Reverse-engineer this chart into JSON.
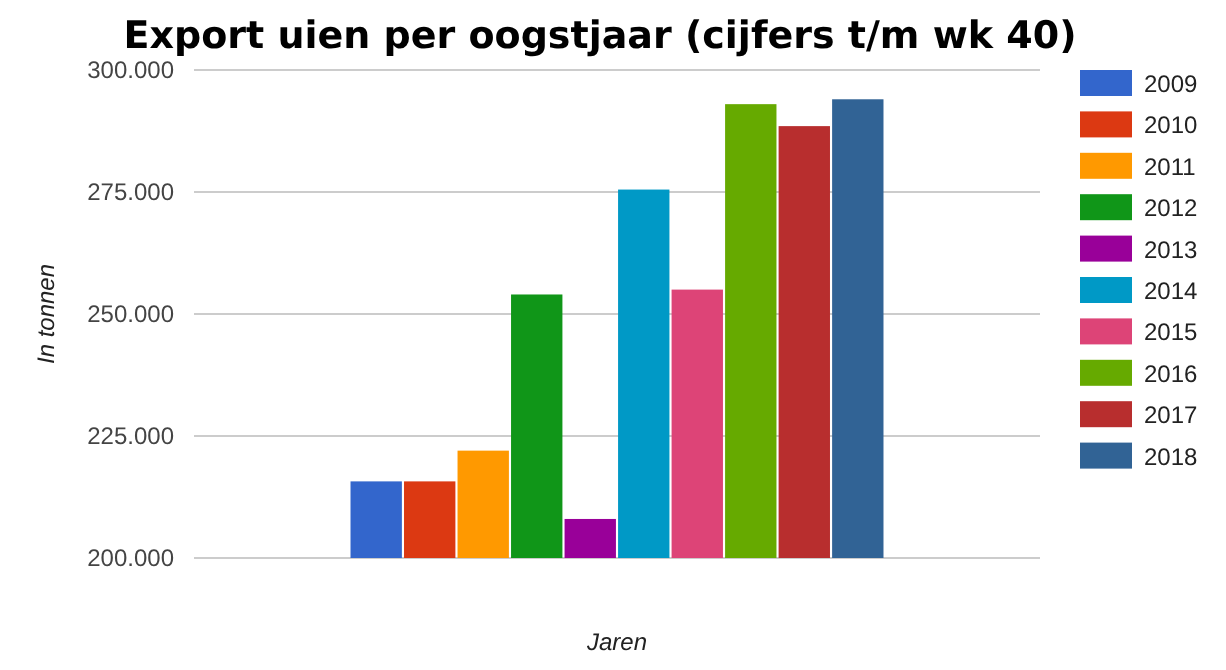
{
  "chart_data": {
    "type": "bar",
    "title": "Export uien per oogstjaar (cijfers t/m wk 40)",
    "xlabel": "Jaren",
    "ylabel": "In tonnen",
    "categories": [
      null
    ],
    "series": [
      {
        "name": "2009",
        "color": "#3366cc",
        "values": [
          215700
        ]
      },
      {
        "name": "2010",
        "color": "#dc3912",
        "values": [
          215700
        ]
      },
      {
        "name": "2011",
        "color": "#ff9900",
        "values": [
          222000
        ]
      },
      {
        "name": "2012",
        "color": "#109618",
        "values": [
          254000
        ]
      },
      {
        "name": "2013",
        "color": "#990099",
        "values": [
          208000
        ]
      },
      {
        "name": "2014",
        "color": "#0099c6",
        "values": [
          275500
        ]
      },
      {
        "name": "2015",
        "color": "#dd4477",
        "values": [
          255000
        ]
      },
      {
        "name": "2016",
        "color": "#66aa00",
        "values": [
          293000
        ]
      },
      {
        "name": "2017",
        "color": "#b82e2e",
        "values": [
          288500
        ]
      },
      {
        "name": "2018",
        "color": "#316395",
        "values": [
          294000
        ]
      }
    ],
    "ylim": [
      200000,
      300000
    ],
    "yticks": [
      {
        "value": 200000,
        "label": "200.000"
      },
      {
        "value": 225000,
        "label": "225.000"
      },
      {
        "value": 250000,
        "label": "250.000"
      },
      {
        "value": 275000,
        "label": "275.000"
      },
      {
        "value": 300000,
        "label": "300.000"
      }
    ],
    "grid": "y",
    "legend": "right"
  }
}
